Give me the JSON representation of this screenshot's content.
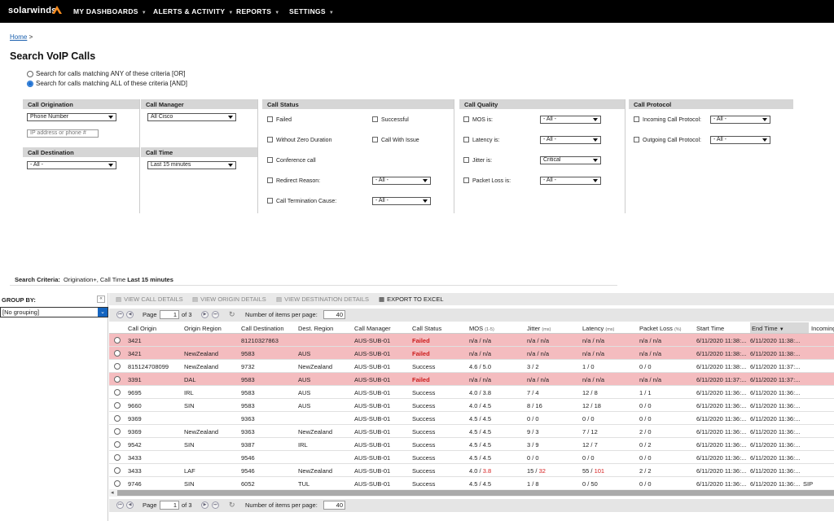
{
  "nav": {
    "logo": "solarwinds",
    "items": [
      "MY DASHBOARDS",
      "ALERTS & ACTIVITY",
      "REPORTS",
      "SETTINGS"
    ]
  },
  "breadcrumb": {
    "home": "Home",
    "sep": ">"
  },
  "title": "Search VoIP Calls",
  "match": {
    "any": "Search for calls matching ANY of these criteria [OR]",
    "all": "Search for calls matching ALL of these criteria [AND]",
    "selected": "all"
  },
  "filters": {
    "origination": {
      "head": "Call Origination",
      "type": "Phone Number",
      "placeholder": "IP address or phone #"
    },
    "destination": {
      "head": "Call Destination",
      "value": "- All -"
    },
    "manager": {
      "head": "Call Manager",
      "value": "All Cisco"
    },
    "time": {
      "head": "Call Time",
      "value": "Last 15 minutes"
    },
    "status": {
      "head": "Call Status",
      "failed": "Failed",
      "successful": "Successful",
      "zero": "Without Zero Duration",
      "issue": "Call With Issue",
      "conference": "Conference call",
      "redirect": "Redirect Reason:",
      "redirect_val": "- All -",
      "termination": "Call Termination Cause:",
      "termination_val": "- All -"
    },
    "quality": {
      "head": "Call Quality",
      "mos": "MOS is:",
      "mos_val": "- All -",
      "latency": "Latency is:",
      "latency_val": "- All -",
      "jitter": "Jitter is:",
      "jitter_val": "Critical",
      "loss": "Packet Loss is:",
      "loss_val": "- All -"
    },
    "protocol": {
      "head": "Call Protocol",
      "incoming": "Incoming Call Protocol:",
      "incoming_val": "- All -",
      "outgoing": "Outgoing Call Protocol:",
      "outgoing_val": "- All -"
    }
  },
  "criteria": {
    "label": "Search Criteria:",
    "text1": "Origination",
    "text2": "+, Call Time",
    "text3": "Last 15 minutes"
  },
  "group": {
    "label": "GROUP BY:",
    "value": "[No grouping]"
  },
  "toolbar": {
    "call": "VIEW CALL DETAILS",
    "origin": "VIEW ORIGIN DETAILS",
    "dest": "VIEW DESTINATION DETAILS",
    "export": "EXPORT TO EXCEL"
  },
  "pager": {
    "page_label": "Page",
    "page": "1",
    "of": "of 3",
    "items_label": "Number of items per page:",
    "items": "40"
  },
  "columns": {
    "origin": "Call Origin",
    "oregion": "Origin Region",
    "dest": "Call Destination",
    "dregion": "Dest. Region",
    "manager": "Call Manager",
    "status": "Call Status",
    "mos": "MOS",
    "mos_u": "(1-5)",
    "jitter": "Jitter",
    "jitter_u": "(ms)",
    "latency": "Latency",
    "latency_u": "(ms)",
    "loss": "Packet Loss",
    "loss_u": "(%)",
    "start": "Start Time",
    "end": "End Time",
    "incoming": "Incoming"
  },
  "rows": [
    {
      "fail": true,
      "origin": "3421",
      "oregion": "",
      "dest": "81210327863",
      "dregion": "",
      "mgr": "AUS-SUB-01",
      "status": "Failed",
      "mos": "n/a / n/a",
      "jit": "n/a / n/a",
      "lat": "n/a / n/a",
      "loss": "n/a / n/a",
      "start": "6/11/2020 11:38:...",
      "end": "6/11/2020 11:38:...",
      "inc": ""
    },
    {
      "fail": true,
      "origin": "3421",
      "oregion": "NewZealand",
      "dest": "9583",
      "dregion": "AUS",
      "mgr": "AUS-SUB-01",
      "status": "Failed",
      "mos": "n/a / n/a",
      "jit": "n/a / n/a",
      "lat": "n/a / n/a",
      "loss": "n/a / n/a",
      "start": "6/11/2020 11:38:...",
      "end": "6/11/2020 11:38:...",
      "inc": ""
    },
    {
      "fail": false,
      "origin": "815124708099",
      "oregion": "NewZealand",
      "dest": "9732",
      "dregion": "NewZealand",
      "mgr": "AUS-SUB-01",
      "status": "Success",
      "mos": "4.6 / 5.0",
      "jit": "3 / 2",
      "lat": "1 / 0",
      "loss": "0 / 0",
      "start": "6/11/2020 11:38:...",
      "end": "6/11/2020 11:37:...",
      "inc": ""
    },
    {
      "fail": true,
      "origin": "3391",
      "oregion": "DAL",
      "dest": "9583",
      "dregion": "AUS",
      "mgr": "AUS-SUB-01",
      "status": "Failed",
      "mos": "n/a / n/a",
      "jit": "n/a / n/a",
      "lat": "n/a / n/a",
      "loss": "n/a / n/a",
      "start": "6/11/2020 11:37:...",
      "end": "6/11/2020 11:37:...",
      "inc": ""
    },
    {
      "fail": false,
      "origin": "9695",
      "oregion": "IRL",
      "dest": "9583",
      "dregion": "AUS",
      "mgr": "AUS-SUB-01",
      "status": "Success",
      "mos": "4.0 / 3.8",
      "jit": "7 / 4",
      "lat": "12 / 8",
      "loss": "1 / 1",
      "start": "6/11/2020 11:36:...",
      "end": "6/11/2020 11:36:...",
      "inc": ""
    },
    {
      "fail": false,
      "origin": "9660",
      "oregion": "SIN",
      "dest": "9583",
      "dregion": "AUS",
      "mgr": "AUS-SUB-01",
      "status": "Success",
      "mos": "4.0 / 4.5",
      "jit": "8 / 16",
      "lat": "12 / 18",
      "loss": "0 / 0",
      "start": "6/11/2020 11:36:...",
      "end": "6/11/2020 11:36:...",
      "inc": ""
    },
    {
      "fail": false,
      "origin": "9369",
      "oregion": "",
      "dest": "9363",
      "dregion": "",
      "mgr": "AUS-SUB-01",
      "status": "Success",
      "mos": "4.5 / 4.5",
      "jit": "0 / 0",
      "lat": "0 / 0",
      "loss": "0 / 0",
      "start": "6/11/2020 11:36:...",
      "end": "6/11/2020 11:36:...",
      "inc": ""
    },
    {
      "fail": false,
      "origin": "9369",
      "oregion": "NewZealand",
      "dest": "9363",
      "dregion": "NewZealand",
      "mgr": "AUS-SUB-01",
      "status": "Success",
      "mos": "4.5 / 4.5",
      "jit": "9 / 3",
      "lat": "7 / 12",
      "loss": "2 / 0",
      "start": "6/11/2020 11:36:...",
      "end": "6/11/2020 11:36:...",
      "inc": ""
    },
    {
      "fail": false,
      "origin": "9542",
      "oregion": "SIN",
      "dest": "9387",
      "dregion": "IRL",
      "mgr": "AUS-SUB-01",
      "status": "Success",
      "mos": "4.5 / 4.5",
      "jit": "3 / 9",
      "lat": "12 / 7",
      "loss": "0 / 2",
      "start": "6/11/2020 11:36:...",
      "end": "6/11/2020 11:36:...",
      "inc": ""
    },
    {
      "fail": false,
      "origin": "3433",
      "oregion": "",
      "dest": "9546",
      "dregion": "",
      "mgr": "AUS-SUB-01",
      "status": "Success",
      "mos": "4.5 / 4.5",
      "jit": "0 / 0",
      "lat": "0 / 0",
      "loss": "0 / 0",
      "start": "6/11/2020 11:36:...",
      "end": "6/11/2020 11:36:...",
      "inc": ""
    },
    {
      "fail": false,
      "origin": "3433",
      "oregion": "LAF",
      "dest": "9546",
      "dregion": "NewZealand",
      "mgr": "AUS-SUB-01",
      "status": "Success",
      "mos": "4.0 / 3.8",
      "jit": "15 / 32",
      "lat": "55 / 101",
      "loss": "2 / 2",
      "start": "6/11/2020 11:36:...",
      "end": "6/11/2020 11:36:...",
      "inc": ""
    },
    {
      "fail": false,
      "origin": "9746",
      "oregion": "SIN",
      "dest": "6052",
      "dregion": "TUL",
      "mgr": "AUS-SUB-01",
      "status": "Success",
      "mos": "4.5 / 4.5",
      "jit": "1 / 8",
      "lat": "0 / 50",
      "loss": "0 / 0",
      "start": "6/11/2020 11:36:...",
      "end": "6/11/2020 11:36:...",
      "inc": "SIP"
    }
  ],
  "highlights": {
    "mos_red_row": 10,
    "jit_red_row": 10,
    "lat_red_row": 10
  }
}
